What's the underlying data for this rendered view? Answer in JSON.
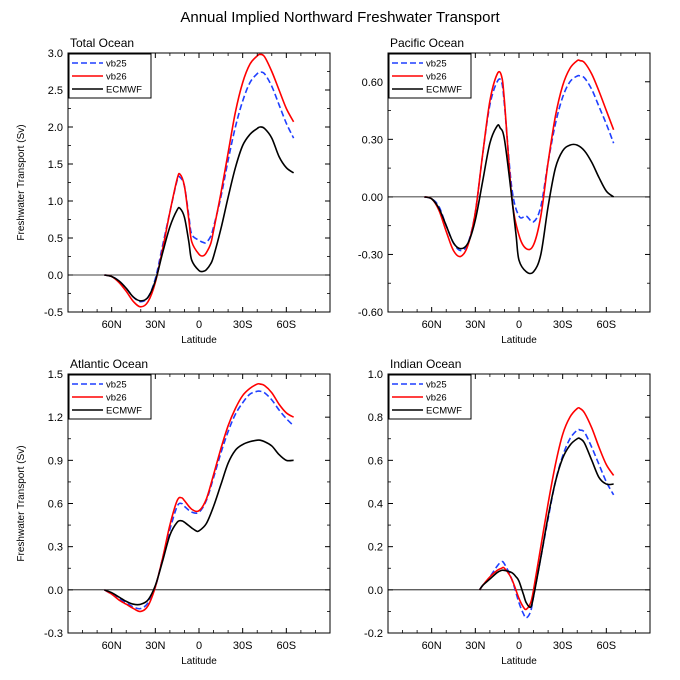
{
  "figure_title": "Annual Implied Northward Freshwater Transport",
  "chart_data": [
    {
      "type": "line",
      "title": "Total Ocean",
      "xlabel": "Latitude",
      "ylabel": "Freshwater Transport (Sv)",
      "xlim": [
        90,
        -90
      ],
      "ylim": [
        -0.5,
        3.0
      ],
      "xticks": [
        60,
        30,
        0,
        -30,
        -60
      ],
      "xtick_labels": [
        "60N",
        "30N",
        "0",
        "30S",
        "60S"
      ],
      "yticks": [
        -0.5,
        0.0,
        0.5,
        1.0,
        1.5,
        2.0,
        2.5,
        3.0
      ],
      "ytick_labels": [
        "-0.5",
        "0.0",
        "0.5",
        "1.0",
        "1.5",
        "2.0",
        "2.5",
        "3.0"
      ],
      "zero_line": true,
      "legend_location": "top-left",
      "series": [
        {
          "name": "vb25",
          "color": "#1f3fff",
          "dash": "dashed",
          "x": [
            65,
            60,
            55,
            50,
            45,
            40,
            35,
            30,
            25,
            20,
            15,
            13,
            10,
            7,
            5,
            0,
            -3,
            -5,
            -8,
            -10,
            -15,
            -20,
            -25,
            -30,
            -35,
            -40,
            -42,
            -45,
            -50,
            -55,
            -60,
            -65
          ],
          "y": [
            0.0,
            -0.02,
            -0.08,
            -0.18,
            -0.3,
            -0.36,
            -0.3,
            -0.05,
            0.4,
            0.85,
            1.28,
            1.32,
            1.2,
            0.8,
            0.55,
            0.47,
            0.44,
            0.44,
            0.52,
            0.65,
            1.05,
            1.55,
            2.0,
            2.35,
            2.6,
            2.72,
            2.74,
            2.72,
            2.55,
            2.3,
            2.05,
            1.85
          ]
        },
        {
          "name": "vb26",
          "color": "#ff0000",
          "dash": "solid",
          "x": [
            65,
            60,
            55,
            50,
            45,
            40,
            35,
            30,
            25,
            20,
            15,
            13,
            10,
            7,
            5,
            0,
            -3,
            -5,
            -8,
            -10,
            -15,
            -20,
            -25,
            -30,
            -35,
            -40,
            -42,
            -45,
            -50,
            -55,
            -60,
            -65
          ],
          "y": [
            0.0,
            -0.02,
            -0.1,
            -0.22,
            -0.36,
            -0.43,
            -0.36,
            -0.1,
            0.35,
            0.85,
            1.3,
            1.36,
            1.2,
            0.75,
            0.45,
            0.28,
            0.26,
            0.3,
            0.42,
            0.6,
            1.1,
            1.65,
            2.2,
            2.6,
            2.85,
            2.96,
            2.98,
            2.95,
            2.75,
            2.5,
            2.25,
            2.07
          ]
        },
        {
          "name": "ECMWF",
          "color": "#000000",
          "dash": "solid",
          "x": [
            65,
            60,
            55,
            50,
            45,
            40,
            35,
            30,
            25,
            20,
            15,
            13,
            10,
            7,
            5,
            0,
            -3,
            -5,
            -8,
            -10,
            -15,
            -20,
            -25,
            -30,
            -35,
            -40,
            -42,
            -45,
            -50,
            -55,
            -60,
            -65
          ],
          "y": [
            0.0,
            -0.02,
            -0.08,
            -0.18,
            -0.3,
            -0.35,
            -0.3,
            -0.08,
            0.3,
            0.65,
            0.88,
            0.9,
            0.78,
            0.45,
            0.2,
            0.06,
            0.05,
            0.07,
            0.15,
            0.25,
            0.62,
            1.05,
            1.45,
            1.75,
            1.9,
            1.98,
            2.0,
            1.98,
            1.85,
            1.6,
            1.45,
            1.38
          ]
        }
      ]
    },
    {
      "type": "line",
      "title": "Pacific Ocean",
      "xlabel": "Latitude",
      "ylabel": "",
      "xlim": [
        90,
        -90
      ],
      "ylim": [
        -0.6,
        0.75
      ],
      "xticks": [
        60,
        30,
        0,
        -30,
        -60
      ],
      "xtick_labels": [
        "60N",
        "30N",
        "0",
        "30S",
        "60S"
      ],
      "yticks": [
        -0.6,
        -0.3,
        0.0,
        0.3,
        0.6
      ],
      "ytick_labels": [
        "-0.60",
        "-0.30",
        "0.00",
        "0.30",
        "0.60"
      ],
      "zero_line": true,
      "legend_location": "top-left",
      "series": [
        {
          "name": "vb25",
          "color": "#1f3fff",
          "dash": "dashed",
          "x": [
            65,
            60,
            55,
            50,
            45,
            40,
            35,
            30,
            25,
            20,
            15,
            12,
            10,
            5,
            0,
            -5,
            -10,
            -15,
            -20,
            -25,
            -30,
            -35,
            -40,
            -42,
            -45,
            -50,
            -55,
            -60,
            -65
          ],
          "y": [
            0.0,
            -0.01,
            -0.05,
            -0.15,
            -0.24,
            -0.28,
            -0.24,
            -0.08,
            0.22,
            0.48,
            0.6,
            0.6,
            0.48,
            0.05,
            -0.1,
            -0.1,
            -0.13,
            -0.05,
            0.18,
            0.38,
            0.52,
            0.6,
            0.63,
            0.63,
            0.62,
            0.56,
            0.47,
            0.38,
            0.28
          ]
        },
        {
          "name": "vb26",
          "color": "#ff0000",
          "dash": "solid",
          "x": [
            65,
            60,
            55,
            50,
            45,
            40,
            35,
            30,
            25,
            20,
            15,
            12,
            10,
            5,
            0,
            -5,
            -10,
            -15,
            -20,
            -25,
            -30,
            -35,
            -40,
            -42,
            -45,
            -50,
            -55,
            -60,
            -65
          ],
          "y": [
            0.0,
            -0.01,
            -0.07,
            -0.18,
            -0.28,
            -0.31,
            -0.25,
            -0.08,
            0.22,
            0.5,
            0.64,
            0.63,
            0.5,
            0.0,
            -0.2,
            -0.27,
            -0.25,
            -0.1,
            0.18,
            0.42,
            0.58,
            0.67,
            0.71,
            0.71,
            0.7,
            0.64,
            0.55,
            0.45,
            0.35
          ]
        },
        {
          "name": "ECMWF",
          "color": "#000000",
          "dash": "solid",
          "x": [
            65,
            60,
            55,
            50,
            45,
            40,
            35,
            30,
            25,
            20,
            15,
            13,
            10,
            5,
            2,
            0,
            -5,
            -10,
            -15,
            -20,
            -25,
            -30,
            -35,
            -40,
            -45,
            -50,
            -55,
            -60,
            -65
          ],
          "y": [
            0.0,
            -0.01,
            -0.06,
            -0.15,
            -0.24,
            -0.27,
            -0.24,
            -0.12,
            0.08,
            0.28,
            0.37,
            0.36,
            0.3,
            0.0,
            -0.2,
            -0.33,
            -0.39,
            -0.39,
            -0.3,
            -0.05,
            0.15,
            0.24,
            0.27,
            0.27,
            0.24,
            0.18,
            0.1,
            0.03,
            0.0
          ]
        }
      ]
    },
    {
      "type": "line",
      "title": "Atlantic Ocean",
      "xlabel": "Latitude",
      "ylabel": "Freshwater Transport (Sv)",
      "xlim": [
        90,
        -90
      ],
      "ylim": [
        -0.3,
        1.5
      ],
      "xticks": [
        60,
        30,
        0,
        -30,
        -60
      ],
      "xtick_labels": [
        "60N",
        "30N",
        "0",
        "30S",
        "60S"
      ],
      "yticks": [
        -0.3,
        0.0,
        0.3,
        0.6,
        0.9,
        1.2,
        1.5
      ],
      "ytick_labels": [
        "-0.3",
        "0.0",
        "0.3",
        "0.6",
        "0.9",
        "1.2",
        "1.5"
      ],
      "zero_line": true,
      "legend_location": "top-left",
      "series": [
        {
          "name": "vb25",
          "color": "#1f3fff",
          "dash": "dashed",
          "x": [
            65,
            60,
            55,
            50,
            45,
            40,
            35,
            30,
            25,
            20,
            15,
            12,
            10,
            5,
            0,
            -5,
            -10,
            -15,
            -20,
            -25,
            -30,
            -35,
            -40,
            -42,
            -45,
            -50,
            -55,
            -60,
            -65
          ],
          "y": [
            0.0,
            -0.03,
            -0.06,
            -0.09,
            -0.12,
            -0.13,
            -0.09,
            0.02,
            0.22,
            0.42,
            0.58,
            0.6,
            0.58,
            0.54,
            0.54,
            0.62,
            0.78,
            0.95,
            1.1,
            1.22,
            1.3,
            1.36,
            1.38,
            1.38,
            1.37,
            1.32,
            1.25,
            1.19,
            1.14
          ]
        },
        {
          "name": "vb26",
          "color": "#ff0000",
          "dash": "solid",
          "x": [
            65,
            60,
            55,
            50,
            45,
            40,
            35,
            30,
            25,
            20,
            15,
            12,
            10,
            5,
            0,
            -5,
            -10,
            -15,
            -20,
            -25,
            -30,
            -35,
            -40,
            -42,
            -45,
            -50,
            -55,
            -60,
            -65
          ],
          "y": [
            0.0,
            -0.03,
            -0.07,
            -0.1,
            -0.13,
            -0.15,
            -0.11,
            0.02,
            0.22,
            0.45,
            0.62,
            0.64,
            0.62,
            0.56,
            0.55,
            0.63,
            0.8,
            0.98,
            1.14,
            1.26,
            1.35,
            1.4,
            1.43,
            1.43,
            1.42,
            1.37,
            1.29,
            1.23,
            1.2
          ]
        },
        {
          "name": "ECMWF",
          "color": "#000000",
          "dash": "solid",
          "x": [
            65,
            60,
            55,
            50,
            45,
            40,
            35,
            30,
            25,
            20,
            15,
            12,
            10,
            5,
            2,
            0,
            -5,
            -10,
            -15,
            -20,
            -25,
            -30,
            -35,
            -40,
            -42,
            -45,
            -50,
            -55,
            -60,
            -65
          ],
          "y": [
            0.0,
            -0.02,
            -0.05,
            -0.08,
            -0.1,
            -0.1,
            -0.07,
            0.03,
            0.2,
            0.38,
            0.47,
            0.48,
            0.47,
            0.43,
            0.41,
            0.41,
            0.46,
            0.58,
            0.73,
            0.88,
            0.97,
            1.01,
            1.03,
            1.04,
            1.04,
            1.03,
            1.0,
            0.94,
            0.9,
            0.9
          ]
        }
      ]
    },
    {
      "type": "line",
      "title": "Indian Ocean",
      "xlabel": "Latitude",
      "ylabel": "",
      "xlim": [
        90,
        -90
      ],
      "ylim": [
        -0.2,
        1.0
      ],
      "xticks": [
        60,
        30,
        0,
        -30,
        -60
      ],
      "xtick_labels": [
        "60N",
        "30N",
        "0",
        "30S",
        "60S"
      ],
      "yticks": [
        -0.2,
        0.0,
        0.2,
        0.4,
        0.6,
        0.8,
        1.0
      ],
      "ytick_labels": [
        "-0.2",
        "0.0",
        "0.2",
        "0.4",
        "0.6",
        "0.8",
        "1.0"
      ],
      "zero_line": true,
      "legend_location": "top-left",
      "series": [
        {
          "name": "vb25",
          "color": "#1f3fff",
          "dash": "dashed",
          "x": [
            27,
            25,
            20,
            15,
            12,
            10,
            5,
            0,
            -3,
            -5,
            -8,
            -10,
            -15,
            -20,
            -25,
            -30,
            -35,
            -40,
            -42,
            -45,
            -50,
            -55,
            -60,
            -65
          ],
          "y": [
            0.0,
            0.02,
            0.06,
            0.11,
            0.13,
            0.12,
            0.05,
            -0.06,
            -0.11,
            -0.13,
            -0.1,
            -0.03,
            0.15,
            0.33,
            0.5,
            0.62,
            0.7,
            0.74,
            0.74,
            0.73,
            0.66,
            0.58,
            0.5,
            0.44
          ]
        },
        {
          "name": "vb26",
          "color": "#ff0000",
          "dash": "solid",
          "x": [
            27,
            25,
            20,
            15,
            12,
            10,
            5,
            0,
            -3,
            -5,
            -8,
            -10,
            -15,
            -20,
            -25,
            -30,
            -35,
            -40,
            -42,
            -45,
            -50,
            -55,
            -60,
            -65
          ],
          "y": [
            0.0,
            0.02,
            0.06,
            0.09,
            0.1,
            0.1,
            0.05,
            -0.04,
            -0.08,
            -0.09,
            -0.06,
            0.0,
            0.2,
            0.4,
            0.58,
            0.72,
            0.8,
            0.84,
            0.84,
            0.82,
            0.75,
            0.66,
            0.58,
            0.53
          ]
        },
        {
          "name": "ECMWF",
          "color": "#000000",
          "dash": "solid",
          "x": [
            27,
            25,
            20,
            15,
            12,
            10,
            5,
            2,
            0,
            -3,
            -5,
            -8,
            -10,
            -15,
            -20,
            -25,
            -30,
            -35,
            -40,
            -42,
            -45,
            -50,
            -55,
            -60,
            -65
          ],
          "y": [
            0.0,
            0.02,
            0.05,
            0.08,
            0.09,
            0.09,
            0.08,
            0.06,
            0.04,
            -0.02,
            -0.06,
            -0.08,
            -0.03,
            0.15,
            0.34,
            0.5,
            0.61,
            0.67,
            0.7,
            0.7,
            0.68,
            0.6,
            0.52,
            0.49,
            0.49
          ]
        }
      ]
    }
  ]
}
